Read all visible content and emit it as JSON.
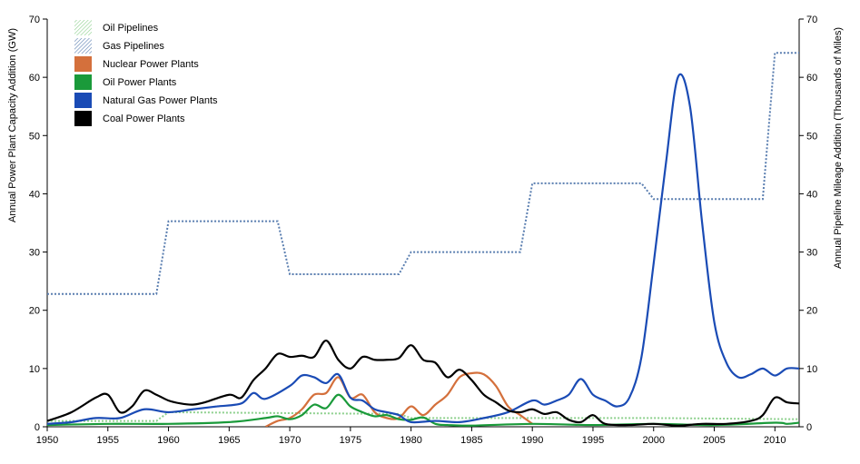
{
  "chart_data": {
    "type": "line",
    "title": "",
    "ylabel_left": "Annual Power Plant Capacity Addition (GW)",
    "ylabel_right": "Annual Pipeline Mileage Addition (Thousands of Miles)",
    "xlim": [
      1950,
      2012
    ],
    "ylim_left": [
      0,
      70
    ],
    "ylim_right": [
      0,
      70
    ],
    "x_ticks": [
      1950,
      1955,
      1960,
      1965,
      1970,
      1975,
      1980,
      1985,
      1990,
      1995,
      2000,
      2005,
      2010
    ],
    "y_ticks": [
      0,
      10,
      20,
      30,
      40,
      50,
      60,
      70
    ],
    "legend_position": "top-left",
    "series": [
      {
        "name": "Oil Pipelines",
        "axis": "right",
        "style": "dotted",
        "color": "#8dd08d",
        "x": [
          1950,
          1959,
          1960,
          1979,
          1980,
          2000,
          2012
        ],
        "y": [
          1.0,
          1.0,
          2.5,
          2.2,
          1.5,
          1.5,
          1.3
        ]
      },
      {
        "name": "Gas Pipelines",
        "axis": "right",
        "style": "dotted",
        "color": "#5a7eb0",
        "x": [
          1950,
          1959,
          1960,
          1969,
          1970,
          1979,
          1980,
          1989,
          1990,
          1999,
          2000,
          2009,
          2010,
          2012
        ],
        "y": [
          22.8,
          22.8,
          35.3,
          35.3,
          26.2,
          26.2,
          30.0,
          30.0,
          41.8,
          41.8,
          39.1,
          39.1,
          64.2,
          64.2
        ]
      },
      {
        "name": "Nuclear Power Plants",
        "axis": "left",
        "color": "#d4703c",
        "x": [
          1968,
          1969,
          1970,
          1971,
          1972,
          1973,
          1974,
          1975,
          1976,
          1977,
          1978,
          1979,
          1980,
          1981,
          1982,
          1983,
          1984,
          1985,
          1986,
          1987,
          1988,
          1989,
          1990
        ],
        "y": [
          0.0,
          1.0,
          1.5,
          3.0,
          5.5,
          5.8,
          8.5,
          5.0,
          5.5,
          2.5,
          1.5,
          1.5,
          3.5,
          2.0,
          3.8,
          5.5,
          8.5,
          9.2,
          9.0,
          7.0,
          3.5,
          2.0,
          0.5
        ]
      },
      {
        "name": "Oil Power Plants",
        "axis": "left",
        "color": "#1a9a3a",
        "x": [
          1950,
          1955,
          1960,
          1965,
          1968,
          1969,
          1970,
          1971,
          1972,
          1973,
          1974,
          1975,
          1976,
          1977,
          1978,
          1979,
          1980,
          1981,
          1982,
          1983,
          1985,
          1990,
          1995,
          2000,
          2005,
          2010,
          2011,
          2012
        ],
        "y": [
          0.3,
          0.5,
          0.5,
          0.8,
          1.5,
          1.8,
          1.3,
          2.0,
          3.8,
          3.2,
          5.5,
          3.5,
          2.5,
          1.8,
          2.0,
          1.3,
          1.2,
          1.6,
          0.5,
          0.3,
          0.2,
          0.5,
          0.3,
          0.5,
          0.3,
          0.7,
          0.5,
          0.7
        ]
      },
      {
        "name": "Natural Gas Power Plants",
        "axis": "left",
        "color": "#1a4bb5",
        "x": [
          1950,
          1952,
          1954,
          1956,
          1958,
          1960,
          1962,
          1964,
          1966,
          1967,
          1968,
          1970,
          1971,
          1972,
          1973,
          1974,
          1975,
          1976,
          1977,
          1978,
          1979,
          1980,
          1982,
          1984,
          1986,
          1988,
          1990,
          1991,
          1992,
          1993,
          1994,
          1995,
          1996,
          1997,
          1998,
          1999,
          2000,
          2001,
          2002,
          2003,
          2004,
          2005,
          2006,
          2007,
          2008,
          2009,
          2010,
          2011,
          2012
        ],
        "y": [
          0.5,
          0.8,
          1.5,
          1.5,
          3.0,
          2.5,
          3.0,
          3.5,
          4.0,
          5.8,
          4.8,
          7.0,
          8.8,
          8.5,
          7.5,
          9.0,
          5.0,
          4.5,
          3.0,
          2.5,
          2.0,
          0.8,
          1.0,
          0.8,
          1.5,
          2.5,
          4.5,
          3.8,
          4.5,
          5.5,
          8.2,
          5.5,
          4.5,
          3.5,
          5.0,
          12.0,
          28.0,
          45.0,
          60.0,
          55.0,
          35.0,
          18.0,
          11.0,
          8.5,
          9.0,
          10.0,
          8.8,
          10.0,
          10.0
        ]
      },
      {
        "name": "Coal Power Plants",
        "axis": "left",
        "color": "#000000",
        "x": [
          1950,
          1952,
          1954,
          1955,
          1956,
          1957,
          1958,
          1959,
          1960,
          1961,
          1962,
          1963,
          1965,
          1966,
          1967,
          1968,
          1969,
          1970,
          1971,
          1972,
          1973,
          1974,
          1975,
          1976,
          1977,
          1978,
          1979,
          1980,
          1981,
          1982,
          1983,
          1984,
          1985,
          1986,
          1987,
          1988,
          1989,
          1990,
          1991,
          1992,
          1993,
          1994,
          1995,
          1996,
          1998,
          2000,
          2002,
          2004,
          2006,
          2008,
          2009,
          2010,
          2011,
          2012
        ],
        "y": [
          1.0,
          2.5,
          5.0,
          5.5,
          2.5,
          3.5,
          6.2,
          5.5,
          4.5,
          4.0,
          3.8,
          4.2,
          5.5,
          5.0,
          8.0,
          10.0,
          12.5,
          12.0,
          12.2,
          12.0,
          14.8,
          11.5,
          10.0,
          12.0,
          11.5,
          11.5,
          11.8,
          14.0,
          11.5,
          11.0,
          8.5,
          9.8,
          8.0,
          5.5,
          4.2,
          2.8,
          2.5,
          3.0,
          2.2,
          2.5,
          1.2,
          0.8,
          2.0,
          0.5,
          0.3,
          0.5,
          0.2,
          0.5,
          0.5,
          1.0,
          2.0,
          5.0,
          4.2,
          4.0
        ]
      }
    ]
  }
}
